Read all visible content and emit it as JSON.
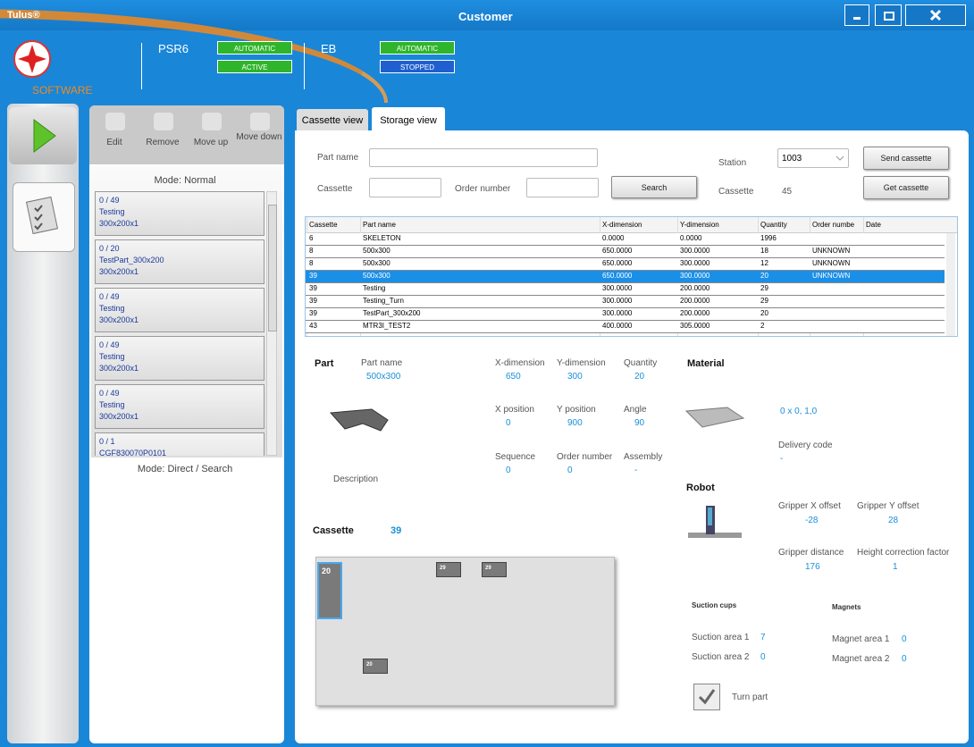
{
  "window": {
    "app": "Tulus®",
    "title": "Customer"
  },
  "header": {
    "logo": "SOFTWARE",
    "machines": [
      {
        "name": "PSR6",
        "states": [
          "AUTOMATIC",
          "ACTIVE"
        ]
      },
      {
        "name": "EB",
        "states": [
          "AUTOMATIC",
          "STOPPED"
        ]
      }
    ]
  },
  "toolbar": [
    "Edit",
    "Remove",
    "Move up",
    "Move down"
  ],
  "list": {
    "mode": "Mode: Normal",
    "footer": "Mode: Direct / Search",
    "items": [
      {
        "count": "0 / 49",
        "name": "Testing",
        "size": "300x200x1"
      },
      {
        "count": "0 / 20",
        "name": "TestPart_300x200",
        "size": "300x200x1"
      },
      {
        "count": "0 / 49",
        "name": "Testing",
        "size": "300x200x1"
      },
      {
        "count": "0 / 49",
        "name": "Testing",
        "size": "300x200x1"
      },
      {
        "count": "0 / 49",
        "name": "Testing",
        "size": "300x200x1"
      },
      {
        "count": "0 / 1",
        "name": "CGF830070P0101"
      }
    ]
  },
  "tabs": [
    "Cassette view",
    "Storage view"
  ],
  "search": {
    "part_name": "Part name",
    "cassette": "Cassette",
    "order_number": "Order number",
    "search": "Search",
    "station": "Station",
    "station_value": "1003",
    "cassette_label": "Cassette",
    "cassette_value": "45",
    "send": "Send cassette",
    "get": "Get cassette"
  },
  "table": {
    "columns": [
      "Cassette",
      "Part name",
      "X-dimension",
      "Y-dimension",
      "Quantity",
      "Order numbe",
      "Date"
    ],
    "rows": [
      [
        "6",
        "SKELETON",
        "0.0000",
        "0.0000",
        "1996"
      ],
      [
        "8",
        "500x300",
        "650.0000",
        "300.0000",
        "18",
        "UNKNOWN"
      ],
      [
        "8",
        "500x300",
        "650.0000",
        "300.0000",
        "12",
        "UNKNOWN"
      ],
      [
        "39",
        "500x300",
        "650.0000",
        "300.0000",
        "20",
        "UNKNOWN"
      ],
      [
        "39",
        "Testing",
        "300.0000",
        "200.0000",
        "29"
      ],
      [
        "39",
        "Testing_Turn",
        "300.0000",
        "200.0000",
        "29"
      ],
      [
        "39",
        "TestPart_300x200",
        "300.0000",
        "200.0000",
        "20"
      ],
      [
        "43",
        "MTR3I_TEST2",
        "400.0000",
        "305.0000",
        "2"
      ]
    ]
  },
  "part": {
    "title": "Part",
    "fields": [
      {
        "label": "Part name",
        "value": "500x300"
      },
      {
        "label": "X-dimension",
        "value": "650"
      },
      {
        "label": "Y-dimension",
        "value": "300"
      },
      {
        "label": "Quantity",
        "value": "20"
      },
      {
        "label": "X position",
        "value": "0"
      },
      {
        "label": "Y position",
        "value": "900"
      },
      {
        "label": "Angle",
        "value": "90"
      },
      {
        "label": "Sequence",
        "value": "0"
      },
      {
        "label": "Order number",
        "value": "0"
      },
      {
        "label": "Assembly",
        "value": "-"
      }
    ],
    "description": "Description"
  },
  "material": {
    "title": "Material",
    "value": "0 x 0, 1,0",
    "delivery_label": "Delivery code",
    "delivery_value": "-"
  },
  "robot": {
    "title": "Robot",
    "fields": [
      {
        "label": "Gripper X offset",
        "value": "-28"
      },
      {
        "label": "Gripper Y offset",
        "value": "28"
      },
      {
        "label": "Gripper distance",
        "value": "176"
      },
      {
        "label": "Height correction factor",
        "value": "1"
      }
    ],
    "suction_title": "Suction cups",
    "magnets_title": "Magnets",
    "suction": [
      {
        "label": "Suction area 1",
        "value": "7"
      },
      {
        "label": "Suction area 2",
        "value": "0"
      }
    ],
    "magnets": [
      {
        "label": "Magnet area 1",
        "value": "0"
      },
      {
        "label": "Magnet area 2",
        "value": "0"
      }
    ],
    "turn": "Turn part"
  },
  "cassette": {
    "title": "Cassette",
    "value": "39",
    "slots": [
      "20",
      "29",
      "29",
      "20"
    ]
  }
}
